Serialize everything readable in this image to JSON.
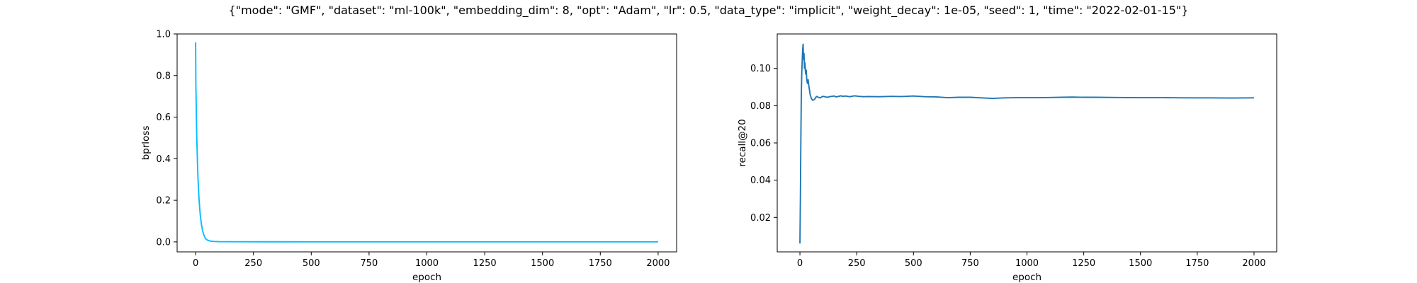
{
  "figure": {
    "title": "{\"mode\": \"GMF\", \"dataset\": \"ml-100k\", \"embedding_dim\": 8, \"opt\": \"Adam\", \"lr\": 0.5, \"data_type\": \"implicit\", \"weight_decay\": 1e-05, \"seed\": 1, \"time\": \"2022-02-01-15\"}"
  },
  "chart_data": [
    {
      "type": "line",
      "xlabel": "epoch",
      "ylabel": "bprloss",
      "xlim": [
        -80,
        2080
      ],
      "ylim": [
        -0.048,
        1.0
      ],
      "xticks": [
        0,
        250,
        500,
        750,
        1000,
        1250,
        1500,
        1750,
        2000
      ],
      "yticks": [
        0.0,
        0.2,
        0.4,
        0.6,
        0.8,
        1.0
      ],
      "color": "#00bfff",
      "series": [
        {
          "x": [
            0,
            1,
            2,
            3,
            5,
            8,
            10,
            15,
            20,
            25,
            30,
            35,
            40,
            45,
            50,
            60,
            70,
            80,
            100,
            150,
            200,
            300,
            500,
            1000,
            1500,
            2000
          ],
          "y": [
            0.96,
            0.76,
            0.7,
            0.62,
            0.5,
            0.38,
            0.31,
            0.2,
            0.13,
            0.085,
            0.055,
            0.035,
            0.022,
            0.014,
            0.009,
            0.005,
            0.003,
            0.002,
            0.001,
            0.0008,
            0.0006,
            0.0005,
            0.0004,
            0.0003,
            0.0003,
            0.0002
          ]
        }
      ]
    },
    {
      "type": "line",
      "xlabel": "epoch",
      "ylabel": "recall@20",
      "xlim": [
        -100,
        2100
      ],
      "ylim": [
        0.0015,
        0.1185
      ],
      "xticks": [
        0,
        250,
        500,
        750,
        1000,
        1250,
        1500,
        1750,
        2000
      ],
      "yticks": [
        0.02,
        0.04,
        0.06,
        0.08,
        0.1
      ],
      "color": "#1f77b4",
      "series": [
        {
          "x": [
            0,
            2,
            4,
            6,
            8,
            10,
            12,
            14,
            16,
            18,
            20,
            22,
            25,
            28,
            30,
            33,
            36,
            40,
            45,
            50,
            55,
            60,
            65,
            70,
            75,
            80,
            90,
            100,
            110,
            120,
            130,
            140,
            150,
            160,
            170,
            180,
            190,
            200,
            220,
            240,
            260,
            280,
            300,
            350,
            400,
            450,
            500,
            550,
            600,
            650,
            700,
            750,
            800,
            850,
            900,
            950,
            1000,
            1050,
            1100,
            1150,
            1200,
            1250,
            1300,
            1400,
            1500,
            1600,
            1700,
            1800,
            1900,
            2000
          ],
          "y": [
            0.006,
            0.03,
            0.06,
            0.085,
            0.097,
            0.104,
            0.11,
            0.113,
            0.105,
            0.108,
            0.1,
            0.103,
            0.097,
            0.099,
            0.094,
            0.092,
            0.094,
            0.09,
            0.086,
            0.084,
            0.083,
            0.083,
            0.0835,
            0.0845,
            0.085,
            0.0845,
            0.0842,
            0.085,
            0.0848,
            0.0845,
            0.0848,
            0.085,
            0.0852,
            0.0847,
            0.085,
            0.0853,
            0.085,
            0.0852,
            0.0848,
            0.0853,
            0.085,
            0.0848,
            0.0849,
            0.0848,
            0.085,
            0.0849,
            0.0852,
            0.0848,
            0.0847,
            0.0843,
            0.0845,
            0.0845,
            0.0842,
            0.0839,
            0.0842,
            0.0843,
            0.0843,
            0.0843,
            0.0844,
            0.0845,
            0.0846,
            0.0845,
            0.0845,
            0.0844,
            0.0843,
            0.0843,
            0.0842,
            0.0842,
            0.0841,
            0.0842
          ]
        }
      ]
    }
  ]
}
